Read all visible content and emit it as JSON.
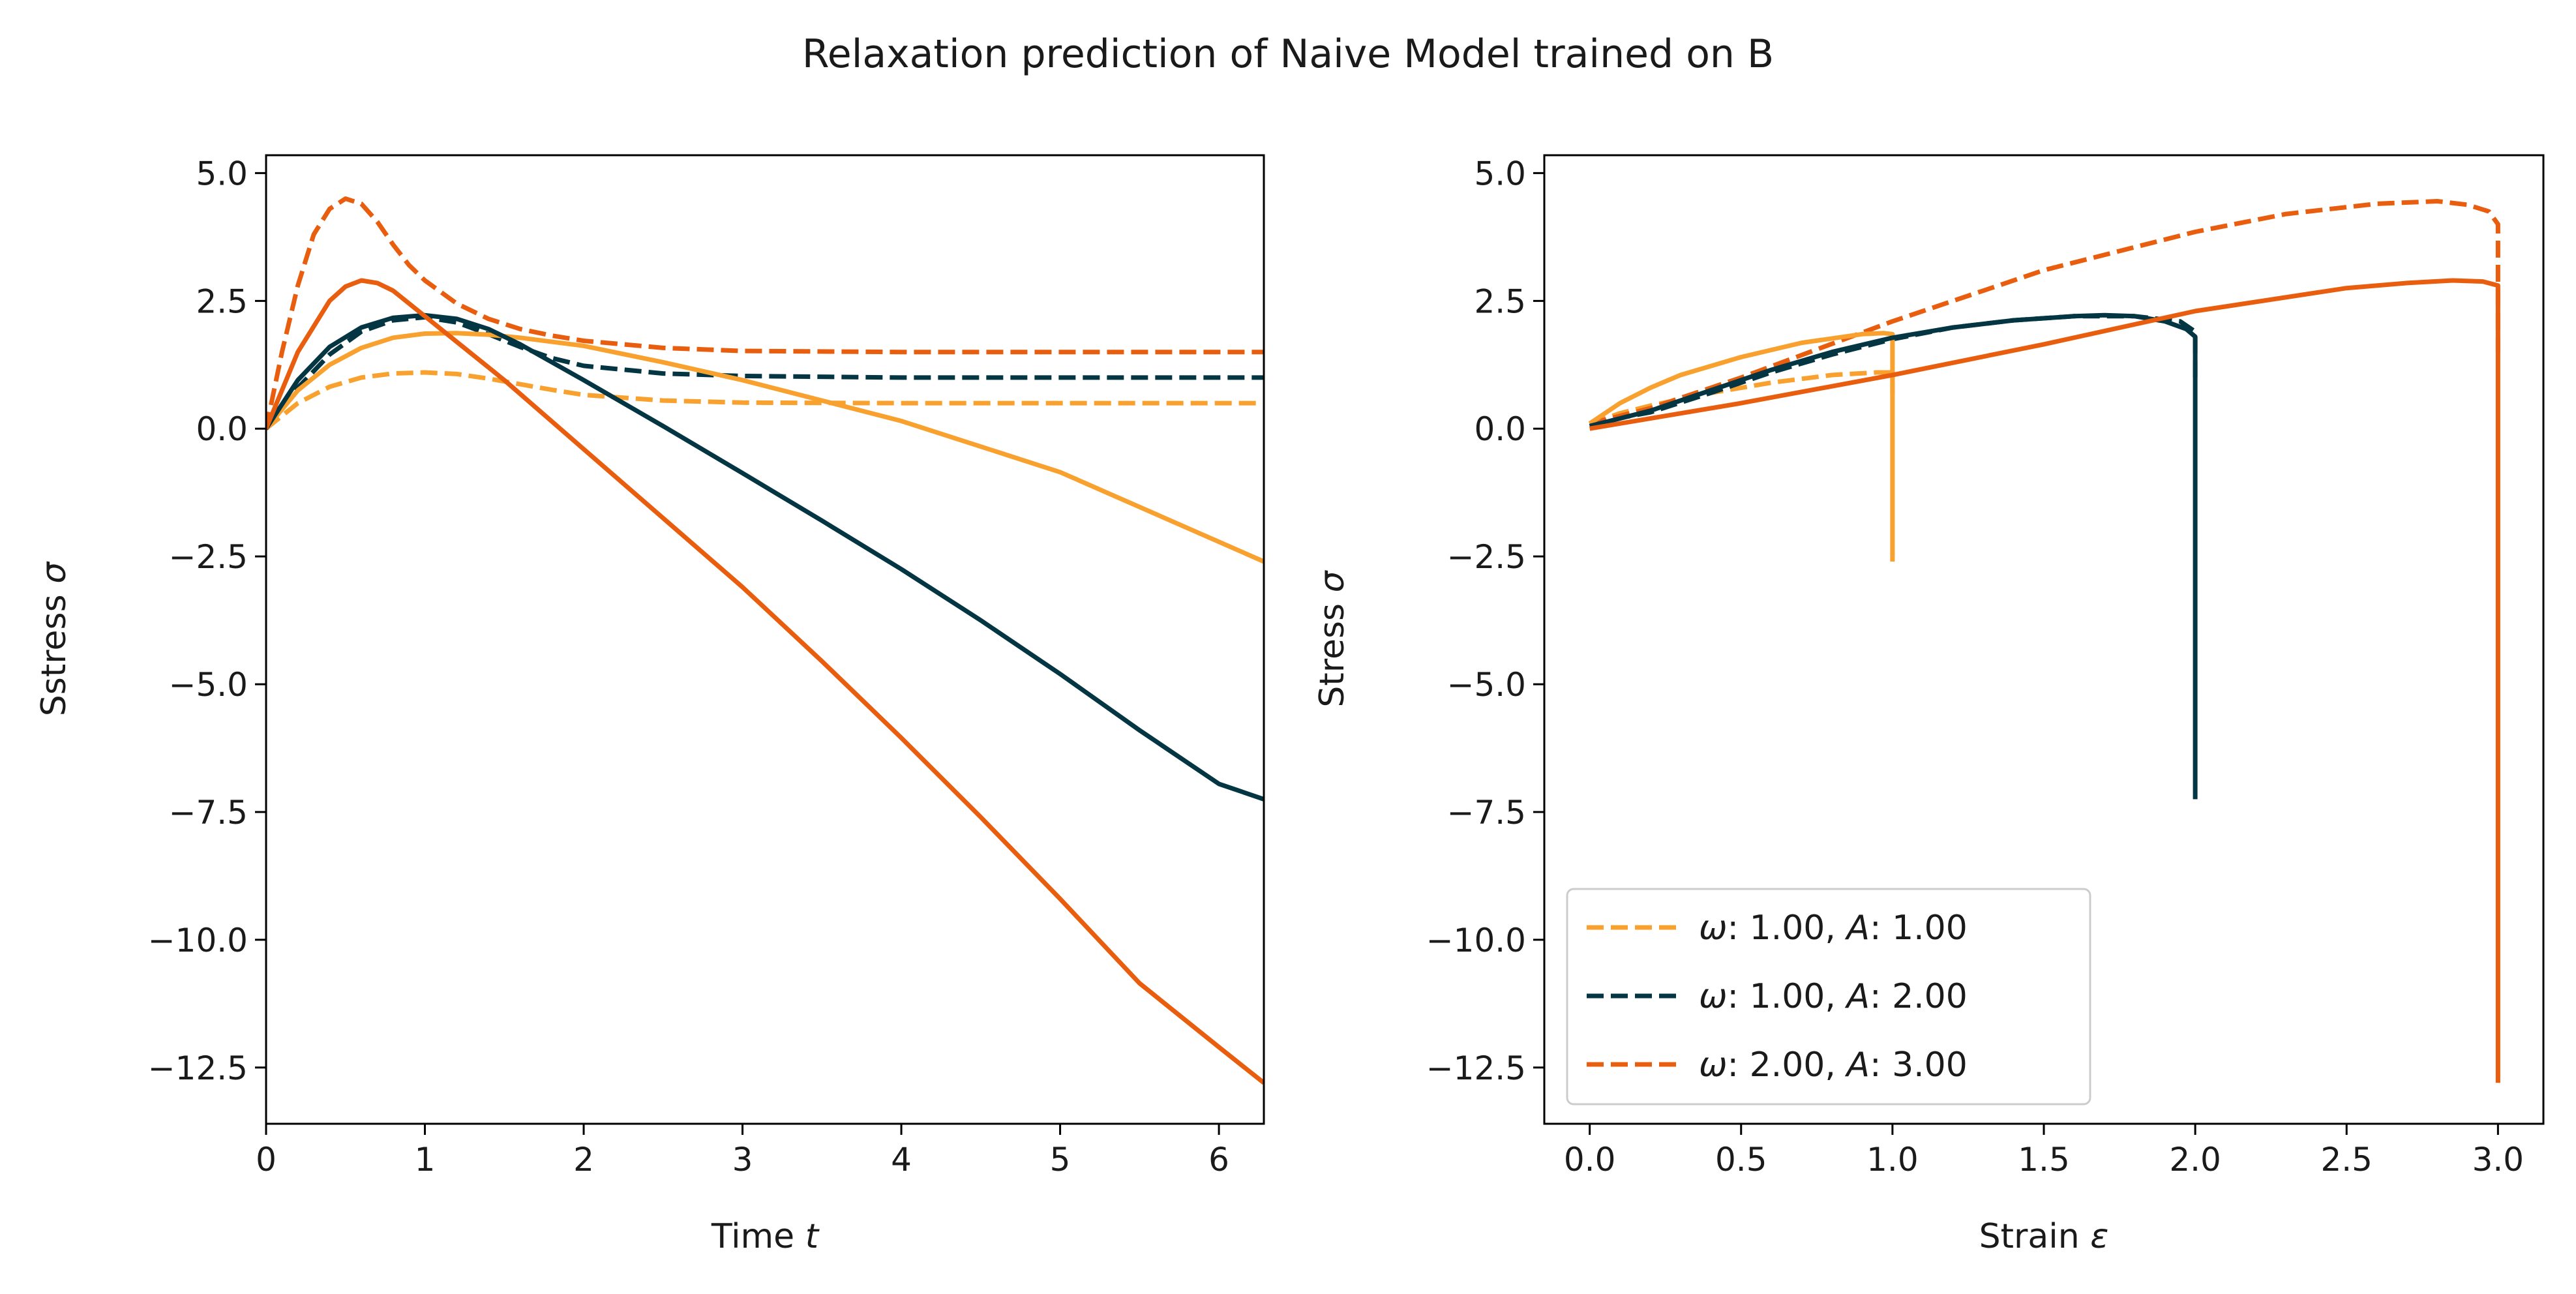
{
  "figure": {
    "title": "Relaxation prediction of Naive Model trained on B"
  },
  "chart_data": [
    {
      "type": "line",
      "panel": "left",
      "xlabel_text": "Time ",
      "xlabel_var": "t",
      "ylabel_text": "Sstress ",
      "ylabel_var": "σ",
      "xlim": [
        0,
        6.283
      ],
      "ylim": [
        -13.6,
        5.35
      ],
      "xticks": [
        0,
        1,
        2,
        3,
        4,
        5,
        6
      ],
      "xtick_labels": [
        "0",
        "1",
        "2",
        "3",
        "4",
        "5",
        "6"
      ],
      "yticks": [
        5.0,
        2.5,
        0.0,
        -2.5,
        -5.0,
        -7.5,
        -10.0,
        -12.5
      ],
      "ytick_labels": [
        "5.0",
        "2.5",
        "0.0",
        "−2.5",
        "−5.0",
        "−7.5",
        "−10.0",
        "−12.5"
      ],
      "grid": false,
      "series": [
        {
          "style": "dashed",
          "color": "#f9a12e",
          "x": [
            0,
            0.2,
            0.4,
            0.6,
            0.8,
            1.0,
            1.2,
            1.4,
            1.6,
            1.8,
            2.0,
            2.5,
            3.0,
            4.0,
            5.0,
            6.283
          ],
          "y": [
            0,
            0.5,
            0.82,
            1.0,
            1.08,
            1.1,
            1.07,
            0.98,
            0.87,
            0.76,
            0.66,
            0.55,
            0.51,
            0.5,
            0.5,
            0.5
          ]
        },
        {
          "style": "dashed",
          "color": "#033642",
          "x": [
            0,
            0.2,
            0.4,
            0.6,
            0.8,
            1.0,
            1.2,
            1.4,
            1.6,
            1.8,
            2.0,
            2.5,
            3.0,
            4.0,
            5.0,
            6.283
          ],
          "y": [
            0,
            0.8,
            1.45,
            1.9,
            2.12,
            2.18,
            2.08,
            1.85,
            1.6,
            1.38,
            1.23,
            1.08,
            1.03,
            1.0,
            1.0,
            1.0
          ]
        },
        {
          "style": "dashed",
          "color": "#e95e0e",
          "x": [
            0,
            0.1,
            0.2,
            0.3,
            0.4,
            0.5,
            0.6,
            0.7,
            0.8,
            0.9,
            1.0,
            1.2,
            1.4,
            1.6,
            1.8,
            2.0,
            2.5,
            3.0,
            4.0,
            5.0,
            6.283
          ],
          "y": [
            0,
            1.5,
            2.8,
            3.8,
            4.3,
            4.5,
            4.4,
            4.05,
            3.6,
            3.2,
            2.9,
            2.45,
            2.15,
            1.95,
            1.82,
            1.72,
            1.58,
            1.52,
            1.5,
            1.5,
            1.5
          ]
        },
        {
          "style": "solid",
          "color": "#f9a12e",
          "x": [
            0,
            0.2,
            0.4,
            0.6,
            0.8,
            1.0,
            1.2,
            1.4,
            1.6,
            2.0,
            2.5,
            3.0,
            3.5,
            4.0,
            5.0,
            6.283
          ],
          "y": [
            0,
            0.75,
            1.25,
            1.58,
            1.78,
            1.86,
            1.87,
            1.84,
            1.78,
            1.62,
            1.3,
            0.95,
            0.55,
            0.15,
            -0.85,
            -2.6
          ]
        },
        {
          "style": "solid",
          "color": "#033642",
          "x": [
            0,
            0.2,
            0.4,
            0.6,
            0.8,
            1.0,
            1.2,
            1.4,
            1.6,
            2.0,
            2.5,
            3.0,
            3.5,
            4.0,
            4.5,
            5.0,
            5.5,
            6.0,
            6.283
          ],
          "y": [
            0,
            0.95,
            1.6,
            1.98,
            2.17,
            2.22,
            2.15,
            1.95,
            1.65,
            0.95,
            0.05,
            -0.87,
            -1.8,
            -2.75,
            -3.75,
            -4.8,
            -5.9,
            -6.95,
            -7.25
          ]
        },
        {
          "style": "solid",
          "color": "#e95e0e",
          "x": [
            0,
            0.2,
            0.4,
            0.5,
            0.6,
            0.7,
            0.8,
            1.0,
            1.2,
            1.5,
            2.0,
            2.5,
            3.0,
            3.5,
            4.0,
            4.5,
            5.0,
            5.5,
            6.0,
            6.283
          ],
          "y": [
            0,
            1.5,
            2.5,
            2.78,
            2.9,
            2.85,
            2.7,
            2.2,
            1.7,
            0.95,
            -0.4,
            -1.75,
            -3.1,
            -4.55,
            -6.05,
            -7.6,
            -9.2,
            -10.85,
            -12.1,
            -12.8
          ]
        }
      ]
    },
    {
      "type": "line",
      "panel": "right",
      "xlabel_text": "Strain ",
      "xlabel_var": "ε",
      "ylabel_text": "Stress ",
      "ylabel_var": "σ",
      "xlim": [
        -0.15,
        3.15
      ],
      "ylim": [
        -13.6,
        5.35
      ],
      "xticks": [
        0,
        0.5,
        1.0,
        1.5,
        2.0,
        2.5,
        3.0
      ],
      "xtick_labels": [
        "0.0",
        "0.5",
        "1.0",
        "1.5",
        "2.0",
        "2.5",
        "3.0"
      ],
      "yticks": [
        5.0,
        2.5,
        0.0,
        -2.5,
        -5.0,
        -7.5,
        -10.0,
        -12.5
      ],
      "ytick_labels": [
        "5.0",
        "2.5",
        "0.0",
        "−2.5",
        "−5.0",
        "−7.5",
        "−10.0",
        "−12.5"
      ],
      "grid": false,
      "legend": {
        "location": "lower-left",
        "entries": [
          {
            "omega_label": "ω",
            "text1": ": 1.00, ",
            "A_label": "A",
            "text2": ": 1.00",
            "color": "#f9a12e",
            "style": "dashed"
          },
          {
            "omega_label": "ω",
            "text1": ": 1.00, ",
            "A_label": "A",
            "text2": ": 2.00",
            "color": "#033642",
            "style": "dashed"
          },
          {
            "omega_label": "ω",
            "text1": ": 2.00, ",
            "A_label": "A",
            "text2": ": 3.00",
            "color": "#e95e0e",
            "style": "dashed"
          }
        ]
      },
      "series": [
        {
          "style": "dashed",
          "color": "#f9a12e",
          "x": [
            0,
            0.1,
            0.2,
            0.4,
            0.6,
            0.8,
            0.95,
            1.0,
            1.0
          ],
          "y": [
            0.1,
            0.3,
            0.45,
            0.7,
            0.9,
            1.05,
            1.1,
            1.1,
            0.5
          ]
        },
        {
          "style": "dashed",
          "color": "#033642",
          "x": [
            0,
            0.2,
            0.4,
            0.6,
            0.8,
            1.0,
            1.2,
            1.4,
            1.6,
            1.8,
            1.95,
            2.0,
            2.0
          ],
          "y": [
            0.1,
            0.32,
            0.7,
            1.1,
            1.45,
            1.75,
            1.98,
            2.12,
            2.2,
            2.2,
            2.1,
            1.9,
            1.0
          ]
        },
        {
          "style": "dashed",
          "color": "#e95e0e",
          "x": [
            0,
            0.2,
            0.5,
            1.0,
            1.5,
            2.0,
            2.3,
            2.6,
            2.8,
            2.9,
            2.97,
            3.0,
            3.0
          ],
          "y": [
            0.1,
            0.4,
            1.0,
            2.1,
            3.1,
            3.85,
            4.2,
            4.4,
            4.45,
            4.38,
            4.25,
            4.0,
            1.5
          ]
        },
        {
          "style": "solid",
          "color": "#f9a12e",
          "x": [
            0,
            0.1,
            0.2,
            0.3,
            0.5,
            0.7,
            0.9,
            0.97,
            1.0,
            1.0
          ],
          "y": [
            0.1,
            0.5,
            0.8,
            1.05,
            1.4,
            1.68,
            1.85,
            1.87,
            1.85,
            -2.6
          ]
        },
        {
          "style": "solid",
          "color": "#033642",
          "x": [
            0,
            0.2,
            0.4,
            0.6,
            0.8,
            1.0,
            1.2,
            1.4,
            1.6,
            1.7,
            1.8,
            1.9,
            1.97,
            2.0,
            2.0
          ],
          "y": [
            0.05,
            0.35,
            0.75,
            1.15,
            1.5,
            1.78,
            1.98,
            2.12,
            2.2,
            2.22,
            2.2,
            2.1,
            1.95,
            1.8,
            -7.25
          ]
        },
        {
          "style": "solid",
          "color": "#e95e0e",
          "x": [
            0,
            0.2,
            0.5,
            1.0,
            1.5,
            2.0,
            2.5,
            2.7,
            2.85,
            2.95,
            3.0,
            3.0
          ],
          "y": [
            0,
            0.2,
            0.5,
            1.05,
            1.65,
            2.3,
            2.75,
            2.85,
            2.9,
            2.88,
            2.8,
            -12.8
          ]
        }
      ]
    }
  ]
}
